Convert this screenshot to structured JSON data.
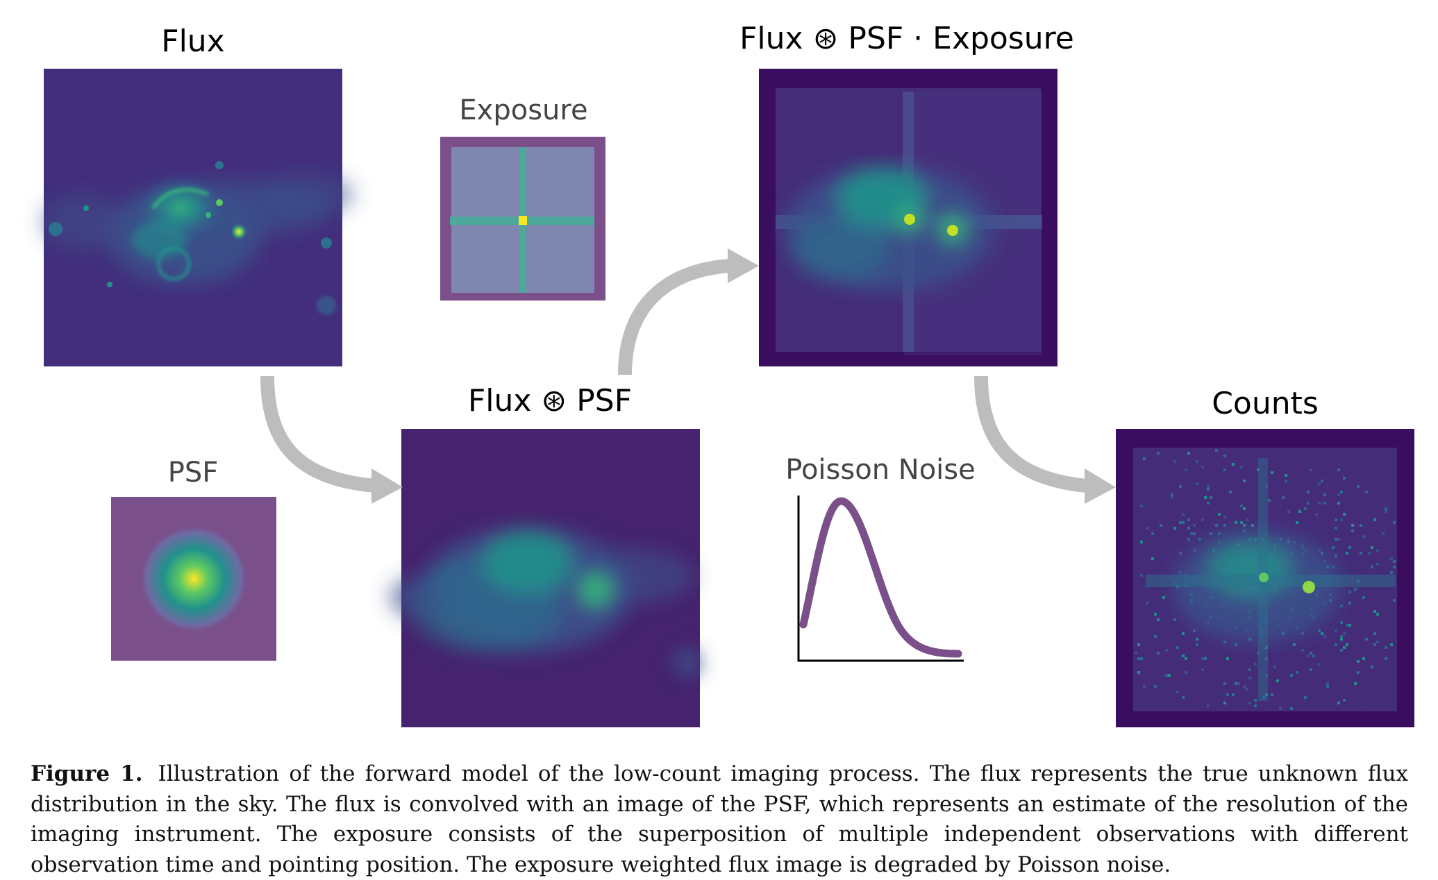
{
  "figure": {
    "panels": {
      "flux": {
        "title": "Flux"
      },
      "exposure": {
        "title": "Exposure"
      },
      "psf": {
        "title": "PSF"
      },
      "flux_psf": {
        "title": "Flux ⊛ PSF"
      },
      "flux_psf_exposure": {
        "title": "Flux ⊛ PSF · Exposure"
      },
      "poisson": {
        "title": "Poisson Noise"
      },
      "counts": {
        "title": "Counts"
      }
    },
    "colors": {
      "viridis_dark": "#440154",
      "viridis_blue": "#31688e",
      "viridis_teal": "#21918c",
      "viridis_green": "#35b779",
      "viridis_yellow": "#fde725",
      "muted_purple": "#7a4f8a",
      "exposure_fill": "#7f86b0",
      "arrow_gray": "#bdbdbd"
    }
  },
  "caption": {
    "label": "Figure 1.",
    "text": "Illustration of the forward model of the low-count imaging process. The flux represents the true unknown flux distribution in the sky. The flux is convolved with an image of the PSF, which represents an estimate of the resolution of the imaging instrument. The exposure consists of the superposition of multiple independent observations with different observation time and pointing position. The exposure weighted flux image is degraded by Poisson noise."
  }
}
